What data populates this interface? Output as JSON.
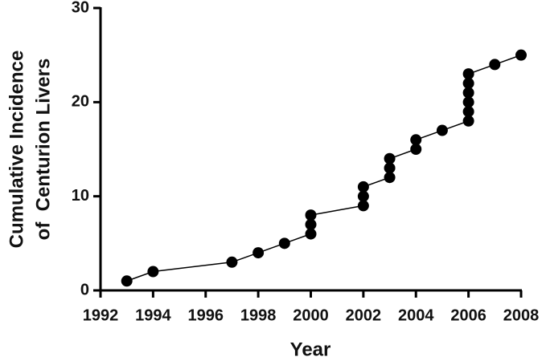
{
  "chart_data": {
    "type": "line",
    "xlabel": "Year",
    "ylabel": [
      "Cumulative Incidence",
      "of  Centurion Livers"
    ],
    "x": [
      1993,
      1994,
      1997,
      1998,
      1999,
      2000,
      2000,
      2000,
      2002,
      2002,
      2002,
      2003,
      2003,
      2003,
      2004,
      2004,
      2005,
      2006,
      2006,
      2006,
      2006,
      2006,
      2006,
      2007,
      2008
    ],
    "values": [
      1,
      2,
      3,
      4,
      5,
      6,
      7,
      8,
      9,
      10,
      11,
      12,
      13,
      14,
      15,
      16,
      17,
      18,
      19,
      20,
      21,
      22,
      23,
      24,
      25
    ],
    "color": "#000000",
    "xlim": [
      1992,
      2008
    ],
    "xticks": [
      1992,
      1994,
      1996,
      1998,
      2000,
      2002,
      2004,
      2006,
      2008
    ],
    "ylim": [
      0,
      30
    ],
    "yticks": [
      0,
      10,
      20,
      30
    ],
    "grid": false
  }
}
